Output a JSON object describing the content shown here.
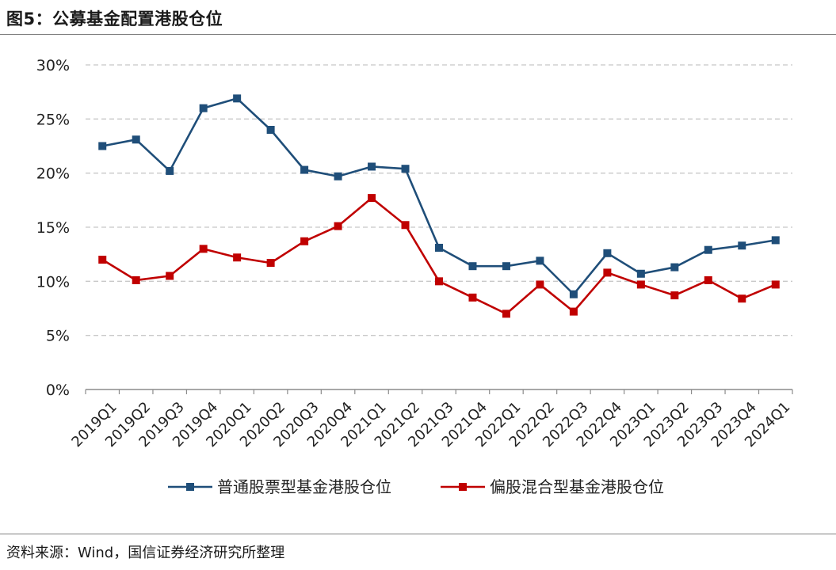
{
  "figure": {
    "title": "图5：公募基金配置港股仓位",
    "source": "资料来源：Wind，国信证券经济研究所整理"
  },
  "chart_data": {
    "type": "line",
    "categories": [
      "2019Q1",
      "2019Q2",
      "2019Q3",
      "2019Q4",
      "2020Q1",
      "2020Q2",
      "2020Q3",
      "2020Q4",
      "2021Q1",
      "2021Q2",
      "2021Q3",
      "2021Q4",
      "2022Q1",
      "2022Q2",
      "2022Q3",
      "2022Q4",
      "2023Q1",
      "2023Q2",
      "2023Q3",
      "2023Q4",
      "2024Q1"
    ],
    "series": [
      {
        "name": "普通股票型基金港股仓位",
        "color": "#1f4e79",
        "marker": "square",
        "values": [
          22.5,
          23.1,
          20.2,
          26.0,
          26.9,
          24.0,
          20.3,
          19.7,
          20.6,
          20.4,
          13.1,
          11.4,
          11.4,
          11.9,
          8.8,
          12.6,
          10.7,
          11.3,
          12.9,
          13.3,
          13.8
        ]
      },
      {
        "name": "偏股混合型基金港股仓位",
        "color": "#c00000",
        "marker": "square",
        "values": [
          12.0,
          10.1,
          10.5,
          13.0,
          12.2,
          11.7,
          13.7,
          15.1,
          17.7,
          15.2,
          10.0,
          8.5,
          7.0,
          9.7,
          7.2,
          10.8,
          9.7,
          8.7,
          10.1,
          8.4,
          9.7
        ]
      }
    ],
    "yticks": [
      "0%",
      "5%",
      "10%",
      "15%",
      "20%",
      "25%",
      "30%"
    ],
    "ylim": [
      0,
      30
    ],
    "grid": true,
    "legend_position": "bottom"
  }
}
